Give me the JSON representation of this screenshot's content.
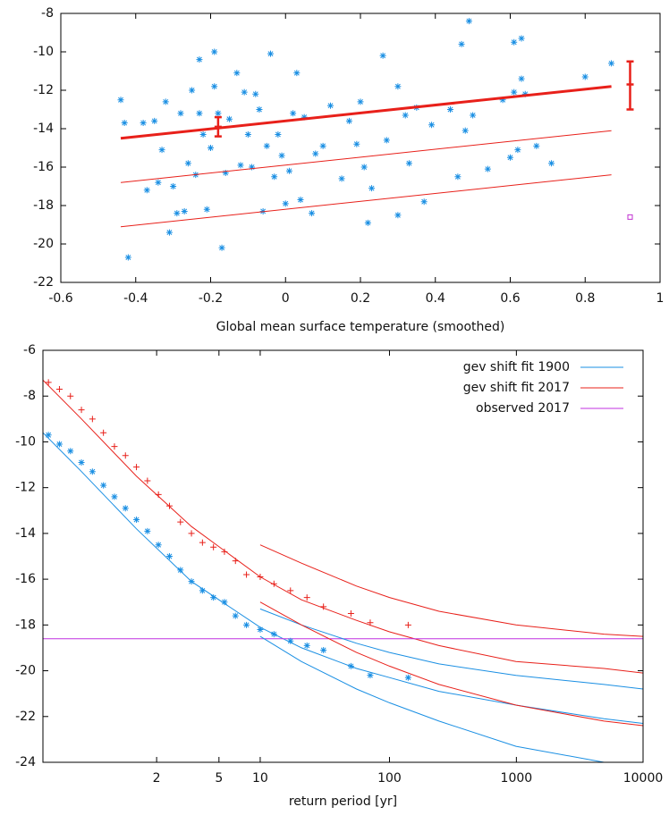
{
  "chart_data": [
    {
      "type": "scatter",
      "xlabel": "Global mean surface temperature (smoothed)",
      "xlim": [
        -0.6,
        1
      ],
      "ylim": [
        -22,
        -8
      ],
      "xticks": [
        -0.6,
        -0.4,
        -0.2,
        0,
        0.2,
        0.4,
        0.6,
        0.8,
        1
      ],
      "yticks": [
        -8,
        -10,
        -12,
        -14,
        -16,
        -18,
        -20,
        -22
      ],
      "series": [
        {
          "type": "scatter",
          "marker": "star",
          "color": "#1a8fe3",
          "x": [
            -0.44,
            -0.43,
            -0.42,
            -0.38,
            -0.37,
            -0.35,
            -0.34,
            -0.33,
            -0.32,
            -0.31,
            -0.3,
            -0.29,
            -0.28,
            -0.27,
            -0.26,
            -0.25,
            -0.24,
            -0.23,
            -0.23,
            -0.22,
            -0.21,
            -0.2,
            -0.19,
            -0.19,
            -0.18,
            -0.17,
            -0.16,
            -0.15,
            -0.13,
            -0.12,
            -0.11,
            -0.1,
            -0.09,
            -0.08,
            -0.07,
            -0.06,
            -0.05,
            -0.04,
            -0.03,
            -0.02,
            -0.01,
            0,
            0.01,
            0.02,
            0.03,
            0.04,
            0.05,
            0.07,
            0.08,
            0.1,
            0.12,
            0.15,
            0.17,
            0.19,
            0.2,
            0.21,
            0.22,
            0.23,
            0.26,
            0.27,
            0.3,
            0.3,
            0.32,
            0.33,
            0.35,
            0.37,
            0.39,
            0.44,
            0.46,
            0.47,
            0.48,
            0.49,
            0.5,
            0.54,
            0.58,
            0.6,
            0.61,
            0.61,
            0.62,
            0.63,
            0.63,
            0.64,
            0.67,
            0.71,
            0.8,
            0.87
          ],
          "values": [
            -12.5,
            -13.7,
            -20.7,
            -13.7,
            -17.2,
            -13.6,
            -16.8,
            -15.1,
            -12.6,
            -19.4,
            -17,
            -18.4,
            -13.2,
            -18.3,
            -15.8,
            -12,
            -16.4,
            -10.4,
            -13.2,
            -14.3,
            -18.2,
            -15,
            -11.8,
            -10,
            -13.2,
            -20.2,
            -16.3,
            -13.5,
            -11.1,
            -15.9,
            -12.1,
            -14.3,
            -16,
            -12.2,
            -13,
            -18.3,
            -14.9,
            -10.1,
            -16.5,
            -14.3,
            -15.4,
            -17.9,
            -16.2,
            -13.2,
            -11.1,
            -17.7,
            -13.4,
            -18.4,
            -15.3,
            -14.9,
            -12.8,
            -16.6,
            -13.6,
            -14.8,
            -12.6,
            -16,
            -18.9,
            -17.1,
            -10.2,
            -14.6,
            -11.8,
            -18.5,
            -13.3,
            -15.8,
            -12.9,
            -17.8,
            -13.8,
            -13,
            -16.5,
            -9.6,
            -14.1,
            -8.4,
            -13.3,
            -16.1,
            -12.5,
            -15.5,
            -9.5,
            -12.1,
            -15.1,
            -11.4,
            -9.3,
            -12.2,
            -14.9,
            -15.8,
            -11.3,
            -10.6
          ]
        },
        {
          "type": "line",
          "color": "#e8201a",
          "width": 3,
          "x": [
            -0.44,
            0.87
          ],
          "values": [
            -14.5,
            -11.8
          ]
        },
        {
          "type": "line",
          "color": "#e8201a",
          "width": 1,
          "x": [
            -0.44,
            0.87
          ],
          "values": [
            -16.8,
            -14.1
          ]
        },
        {
          "type": "line",
          "color": "#e8201a",
          "width": 1,
          "x": [
            -0.44,
            0.87
          ],
          "values": [
            -19.1,
            -16.4
          ]
        },
        {
          "type": "errorbar",
          "color": "#e8201a",
          "x": [
            -0.18,
            0.92
          ],
          "values": [
            -13.9,
            -11.7
          ],
          "low": [
            -14.4,
            -13.0
          ],
          "high": [
            -13.4,
            -10.5
          ]
        },
        {
          "type": "scatter",
          "marker": "square",
          "color": "#c030d0",
          "x": [
            0.92
          ],
          "values": [
            -18.6
          ]
        }
      ]
    },
    {
      "type": "line",
      "xlabel": "return period [yr]",
      "xlim": [
        -1.7,
        9.21
      ],
      "ylim": [
        -24,
        -6
      ],
      "xticks": [
        {
          "value": 0.367,
          "label": "2"
        },
        {
          "value": 1.5,
          "label": "5"
        },
        {
          "value": 2.25,
          "label": "10"
        },
        {
          "value": 4.6,
          "label": "100"
        },
        {
          "value": 6.907,
          "label": "1000"
        },
        {
          "value": 9.21,
          "label": "10000"
        }
      ],
      "yticks": [
        -6,
        -8,
        -10,
        -12,
        -14,
        -16,
        -18,
        -20,
        -22,
        -24
      ],
      "legend": "top-right",
      "series": [
        {
          "name": "gev shift fit 1900",
          "type": "line",
          "color": "#1a8fe3",
          "x": [
            -1.7,
            -1,
            0,
            1,
            2.25,
            3,
            4,
            4.6,
            5.5,
            6.9,
            8.5,
            9.21
          ],
          "values": [
            -9.6,
            -11.3,
            -13.8,
            -16.1,
            -18.1,
            -19.0,
            -19.9,
            -20.3,
            -20.9,
            -21.5,
            -22.1,
            -22.3
          ]
        },
        {
          "name": "gev shift fit 2017",
          "type": "line",
          "color": "#e8201a",
          "x": [
            -1.7,
            -1,
            0,
            1,
            2.25,
            3,
            4,
            4.6,
            5.5,
            6.9,
            8.5,
            9.21
          ],
          "values": [
            -7.3,
            -9.0,
            -11.5,
            -13.7,
            -15.9,
            -16.9,
            -17.8,
            -18.3,
            -18.9,
            -19.6,
            -19.9,
            -20.1
          ]
        },
        {
          "name": "observed 2017",
          "type": "line",
          "color": "#c030e0",
          "x": [
            -1.7,
            9.21
          ],
          "values": [
            -18.6,
            -18.6
          ]
        },
        {
          "type": "line",
          "color": "#1a8fe3",
          "x": [
            2.25,
            3,
            4,
            4.6,
            5.5,
            6.9,
            8.5,
            9.21
          ],
          "values": [
            -17.3,
            -18.0,
            -18.8,
            -19.2,
            -19.7,
            -20.2,
            -20.6,
            -20.8
          ]
        },
        {
          "type": "line",
          "color": "#1a8fe3",
          "x": [
            2.25,
            3,
            4,
            4.6,
            5.5,
            6.9,
            8.5,
            9.21
          ],
          "values": [
            -18.5,
            -19.6,
            -20.8,
            -21.4,
            -22.2,
            -23.3,
            -24.0,
            null
          ]
        },
        {
          "type": "line",
          "color": "#e8201a",
          "x": [
            2.25,
            3,
            4,
            4.6,
            5.5,
            6.9,
            8.5,
            9.21
          ],
          "values": [
            -14.5,
            -15.3,
            -16.3,
            -16.8,
            -17.4,
            -18.0,
            -18.4,
            -18.5
          ]
        },
        {
          "type": "line",
          "color": "#e8201a",
          "x": [
            2.25,
            3,
            4,
            4.6,
            5.5,
            6.9,
            8.5,
            9.21
          ],
          "values": [
            -17.0,
            -18.0,
            -19.2,
            -19.8,
            -20.6,
            -21.5,
            -22.2,
            -22.4
          ]
        },
        {
          "type": "scatter",
          "marker": "star",
          "color": "#1a8fe3",
          "x": [
            -1.6,
            -1.4,
            -1.2,
            -1,
            -0.8,
            -0.6,
            -0.4,
            -0.2,
            0,
            0.2,
            0.4,
            0.6,
            0.8,
            1,
            1.2,
            1.4,
            1.6,
            1.8,
            2,
            2.25,
            2.5,
            2.8,
            3.1,
            3.4,
            3.9,
            4.25,
            4.94
          ],
          "values": [
            -9.7,
            -10.1,
            -10.4,
            -10.9,
            -11.3,
            -11.9,
            -12.4,
            -12.9,
            -13.4,
            -13.9,
            -14.5,
            -15,
            -15.6,
            -16.1,
            -16.5,
            -16.8,
            -17,
            -17.6,
            -18,
            -18.2,
            -18.4,
            -18.7,
            -18.9,
            -19.1,
            -19.8,
            -20.2,
            -20.3
          ]
        },
        {
          "type": "scatter",
          "marker": "plus",
          "color": "#e8201a",
          "x": [
            -1.6,
            -1.4,
            -1.2,
            -1,
            -0.8,
            -0.6,
            -0.4,
            -0.2,
            0,
            0.2,
            0.4,
            0.6,
            0.8,
            1,
            1.2,
            1.4,
            1.6,
            1.8,
            2,
            2.25,
            2.5,
            2.8,
            3.1,
            3.4,
            3.9,
            4.25,
            4.94
          ],
          "values": [
            -7.4,
            -7.7,
            -8,
            -8.6,
            -9,
            -9.6,
            -10.2,
            -10.6,
            -11.1,
            -11.7,
            -12.3,
            -12.8,
            -13.5,
            -14,
            -14.4,
            -14.6,
            -14.8,
            -15.2,
            -15.8,
            -15.9,
            -16.2,
            -16.5,
            -16.8,
            -17.2,
            -17.5,
            -17.9,
            -18
          ]
        }
      ]
    }
  ]
}
